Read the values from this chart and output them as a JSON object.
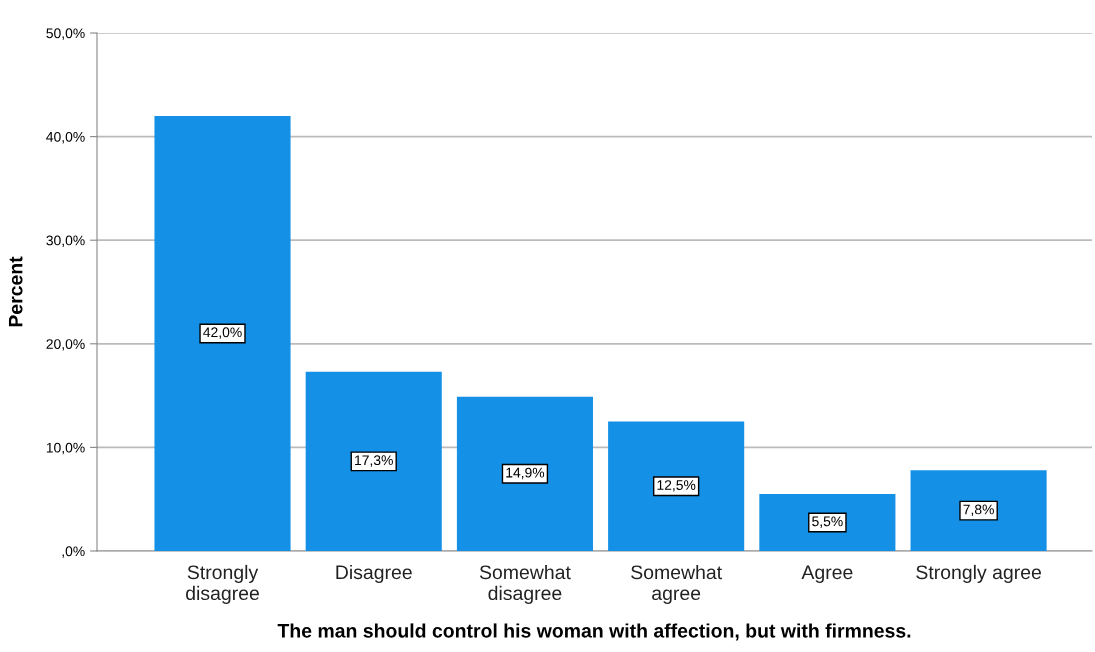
{
  "chart_data": {
    "type": "bar",
    "xlabel": "The man should control his woman with affection, but with firmness.",
    "ylabel": "Percent",
    "categories": [
      "Strongly\ndisagree",
      "Disagree",
      "Somewhat\ndisagree",
      "Somewhat\nagree",
      "Agree",
      "Strongly agree"
    ],
    "values": [
      42.0,
      17.3,
      14.9,
      12.5,
      5.5,
      7.8
    ],
    "value_labels": [
      "42,0%",
      "17,3%",
      "14,9%",
      "12,5%",
      "5,5%",
      "7,8%"
    ],
    "color": "#1490e6",
    "ylim": [
      0,
      50
    ],
    "yticks": [
      {
        "value": 0,
        "label": ",0%"
      },
      {
        "value": 10,
        "label": "10,0%"
      },
      {
        "value": 20,
        "label": "20,0%"
      },
      {
        "value": 30,
        "label": "30,0%"
      },
      {
        "value": 40,
        "label": "40,0%"
      },
      {
        "value": 50,
        "label": "50,0%"
      }
    ],
    "grid": "y",
    "legend": false
  }
}
